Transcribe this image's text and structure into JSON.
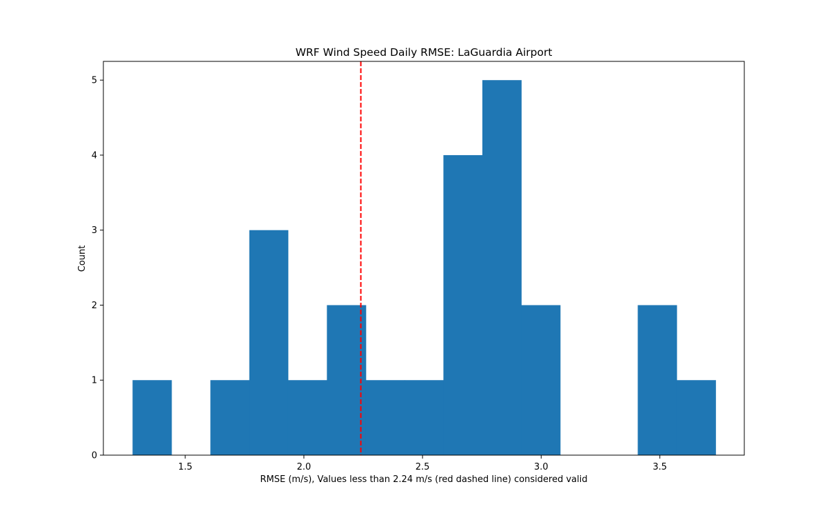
{
  "chart_data": {
    "type": "bar",
    "subtype": "histogram",
    "title": "WRF Wind Speed Daily RMSE: LaGuardia Airport",
    "xlabel": "RMSE (m/s), Values less than 2.24 m/s (red dashed line) considered valid",
    "ylabel": "Count",
    "xlim": [
      1.155,
      3.856
    ],
    "ylim": [
      0,
      5.25
    ],
    "xticks": [
      1.5,
      2.0,
      2.5,
      3.0,
      3.5
    ],
    "xtick_labels": [
      "1.5",
      "2.0",
      "2.5",
      "3.0",
      "3.5"
    ],
    "yticks": [
      0,
      1,
      2,
      3,
      4,
      5
    ],
    "ytick_labels": [
      "0",
      "1",
      "2",
      "3",
      "4",
      "5"
    ],
    "bar_color": "#1f77b4",
    "bins": [
      {
        "left": 1.278,
        "right": 1.442,
        "count": 1
      },
      {
        "left": 1.442,
        "right": 1.606,
        "count": 0
      },
      {
        "left": 1.606,
        "right": 1.77,
        "count": 1
      },
      {
        "left": 1.77,
        "right": 1.933,
        "count": 3
      },
      {
        "left": 1.933,
        "right": 2.097,
        "count": 1
      },
      {
        "left": 2.097,
        "right": 2.261,
        "count": 2
      },
      {
        "left": 2.261,
        "right": 2.425,
        "count": 1
      },
      {
        "left": 2.425,
        "right": 2.588,
        "count": 1
      },
      {
        "left": 2.588,
        "right": 2.752,
        "count": 4
      },
      {
        "left": 2.752,
        "right": 2.916,
        "count": 5
      },
      {
        "left": 2.916,
        "right": 3.08,
        "count": 2
      },
      {
        "left": 3.08,
        "right": 3.243,
        "count": 0
      },
      {
        "left": 3.243,
        "right": 3.407,
        "count": 0
      },
      {
        "left": 3.407,
        "right": 3.571,
        "count": 2
      },
      {
        "left": 3.571,
        "right": 3.735,
        "count": 1
      }
    ],
    "threshold_line": {
      "x": 2.24,
      "color": "#ff0000",
      "style": "dashed"
    },
    "grid": false,
    "legend": "none"
  }
}
